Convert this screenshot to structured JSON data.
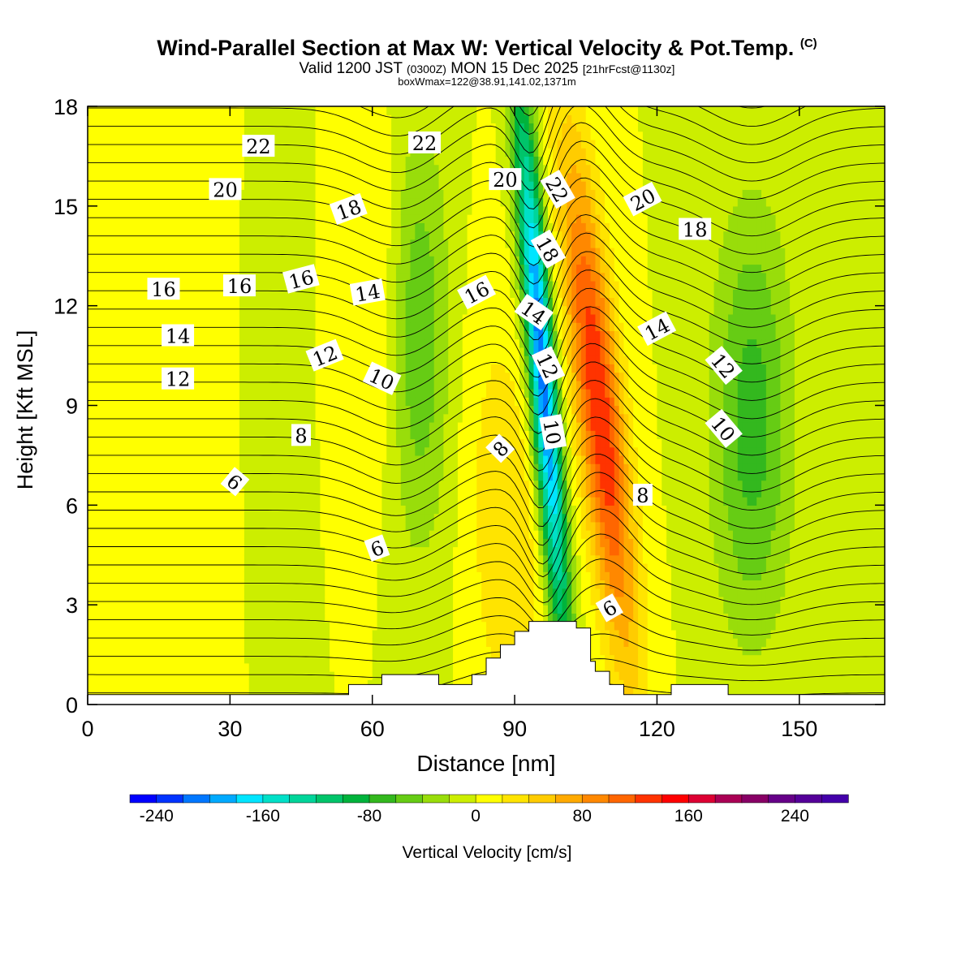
{
  "header": {
    "title_main": "Wind-Parallel Section at Max W: Vertical Velocity & Pot.Temp.",
    "title_copyright": "(C)",
    "subtitle_a": "Valid 1200 JST",
    "subtitle_b": "(0300Z)",
    "subtitle_c": "MON 15 Dec 2025",
    "subtitle_d": "[21hrFcst@1130z]",
    "subtitle2": "boxWmax=122@38.91,141.02,1371m"
  },
  "chart_data": {
    "type": "heatmap",
    "title": "Wind-Parallel Section at Max W: Vertical Velocity & Pot.Temp.",
    "xlabel": "Distance [nm]",
    "ylabel": "Height [Kft MSL]",
    "xlim": [
      0,
      168
    ],
    "ylim": [
      0,
      18
    ],
    "x_ticks": [
      0,
      30,
      60,
      90,
      120,
      150
    ],
    "y_ticks": [
      0,
      3,
      6,
      9,
      12,
      15,
      18
    ],
    "colorbar": {
      "label": "Vertical Velocity [cm/s]",
      "min": -260,
      "max": 280,
      "step": 20,
      "tick_values": [
        -240,
        -160,
        -80,
        0,
        80,
        160,
        240
      ],
      "colors": [
        "#0000ff",
        "#0033ff",
        "#0077ff",
        "#00aaff",
        "#00e5ff",
        "#00e0c8",
        "#00d59a",
        "#00c46a",
        "#00b33c",
        "#33b81e",
        "#66cc14",
        "#99dd0a",
        "#ccee00",
        "#ffff00",
        "#ffe400",
        "#ffcc00",
        "#ffaa00",
        "#ff8800",
        "#ff6600",
        "#ff3300",
        "#ff0000",
        "#dd0033",
        "#aa0055",
        "#880066",
        "#660088",
        "#550099",
        "#4400aa"
      ]
    },
    "features": [
      {
        "name": "background",
        "w": 0
      },
      {
        "name": "updraft-west",
        "x": 90,
        "w": 40
      },
      {
        "name": "updraft-west-top",
        "x": 62,
        "w": 20
      },
      {
        "name": "downdraft-west",
        "x": 70,
        "w": -55
      },
      {
        "name": "downdraft-core",
        "x": 98,
        "w": -220
      },
      {
        "name": "updraft-core",
        "x": 110,
        "w": 140
      },
      {
        "name": "downdraft-east",
        "x": 140,
        "w": -70
      }
    ],
    "theta_label_values": [
      6,
      6,
      6,
      8,
      8,
      8,
      10,
      10,
      10,
      12,
      12,
      12,
      12,
      14,
      14,
      14,
      14,
      16,
      16,
      16,
      16,
      18,
      18,
      18,
      20,
      20,
      20,
      22,
      22,
      22
    ],
    "contour_labels": [
      {
        "v": "22",
        "x": 36,
        "y": 16.8,
        "rot": 0
      },
      {
        "v": "22",
        "x": 71,
        "y": 16.9,
        "rot": 0
      },
      {
        "v": "20",
        "x": 29,
        "y": 15.5,
        "rot": 0
      },
      {
        "v": "20",
        "x": 88,
        "y": 15.8,
        "rot": 0
      },
      {
        "v": "22",
        "x": 99,
        "y": 15.5,
        "rot": 60
      },
      {
        "v": "20",
        "x": 117,
        "y": 15.2,
        "rot": -28
      },
      {
        "v": "18",
        "x": 55,
        "y": 14.9,
        "rot": -20
      },
      {
        "v": "18",
        "x": 97,
        "y": 13.7,
        "rot": 60
      },
      {
        "v": "18",
        "x": 128,
        "y": 14.3,
        "rot": 0
      },
      {
        "v": "16",
        "x": 16,
        "y": 12.5,
        "rot": 0
      },
      {
        "v": "16",
        "x": 32,
        "y": 12.6,
        "rot": 0
      },
      {
        "v": "16",
        "x": 45,
        "y": 12.8,
        "rot": -15
      },
      {
        "v": "16",
        "x": 82,
        "y": 12.4,
        "rot": -28
      },
      {
        "v": "14",
        "x": 19,
        "y": 11.1,
        "rot": 0
      },
      {
        "v": "14",
        "x": 59,
        "y": 12.4,
        "rot": -10
      },
      {
        "v": "14",
        "x": 94,
        "y": 11.8,
        "rot": 35
      },
      {
        "v": "14",
        "x": 120,
        "y": 11.3,
        "rot": -28
      },
      {
        "v": "12",
        "x": 19,
        "y": 9.8,
        "rot": 0
      },
      {
        "v": "12",
        "x": 50,
        "y": 10.5,
        "rot": -22
      },
      {
        "v": "12",
        "x": 97,
        "y": 10.2,
        "rot": 65
      },
      {
        "v": "12",
        "x": 134,
        "y": 10.2,
        "rot": 50
      },
      {
        "v": "10",
        "x": 62,
        "y": 9.8,
        "rot": 25
      },
      {
        "v": "10",
        "x": 98,
        "y": 8.2,
        "rot": 80
      },
      {
        "v": "10",
        "x": 134,
        "y": 8.3,
        "rot": 50
      },
      {
        "v": "8",
        "x": 45,
        "y": 8.1,
        "rot": 0
      },
      {
        "v": "8",
        "x": 87,
        "y": 7.7,
        "rot": -45
      },
      {
        "v": "8",
        "x": 117,
        "y": 6.3,
        "rot": 0
      },
      {
        "v": "6",
        "x": 31,
        "y": 6.7,
        "rot": 40
      },
      {
        "v": "6",
        "x": 61,
        "y": 4.7,
        "rot": -20
      },
      {
        "v": "6",
        "x": 110,
        "y": 2.9,
        "rot": -30
      }
    ],
    "terrain": [
      [
        0,
        0.3
      ],
      [
        55,
        0.3
      ],
      [
        55,
        0.6
      ],
      [
        62,
        0.6
      ],
      [
        62,
        0.9
      ],
      [
        74,
        0.9
      ],
      [
        74,
        0.6
      ],
      [
        81,
        0.6
      ],
      [
        81,
        0.9
      ],
      [
        84,
        0.9
      ],
      [
        84,
        1.4
      ],
      [
        87,
        1.4
      ],
      [
        87,
        1.8
      ],
      [
        90,
        1.8
      ],
      [
        90,
        2.2
      ],
      [
        93,
        2.2
      ],
      [
        93,
        2.5
      ],
      [
        103,
        2.5
      ],
      [
        103,
        2.3
      ],
      [
        106,
        2.3
      ],
      [
        106,
        1.3
      ],
      [
        107,
        1.3
      ],
      [
        107,
        1.0
      ],
      [
        110,
        1.0
      ],
      [
        110,
        0.6
      ],
      [
        113,
        0.6
      ],
      [
        113,
        0.3
      ],
      [
        123,
        0.3
      ],
      [
        123,
        0.6
      ],
      [
        135,
        0.6
      ],
      [
        135,
        0.3
      ],
      [
        168,
        0.3
      ]
    ]
  }
}
